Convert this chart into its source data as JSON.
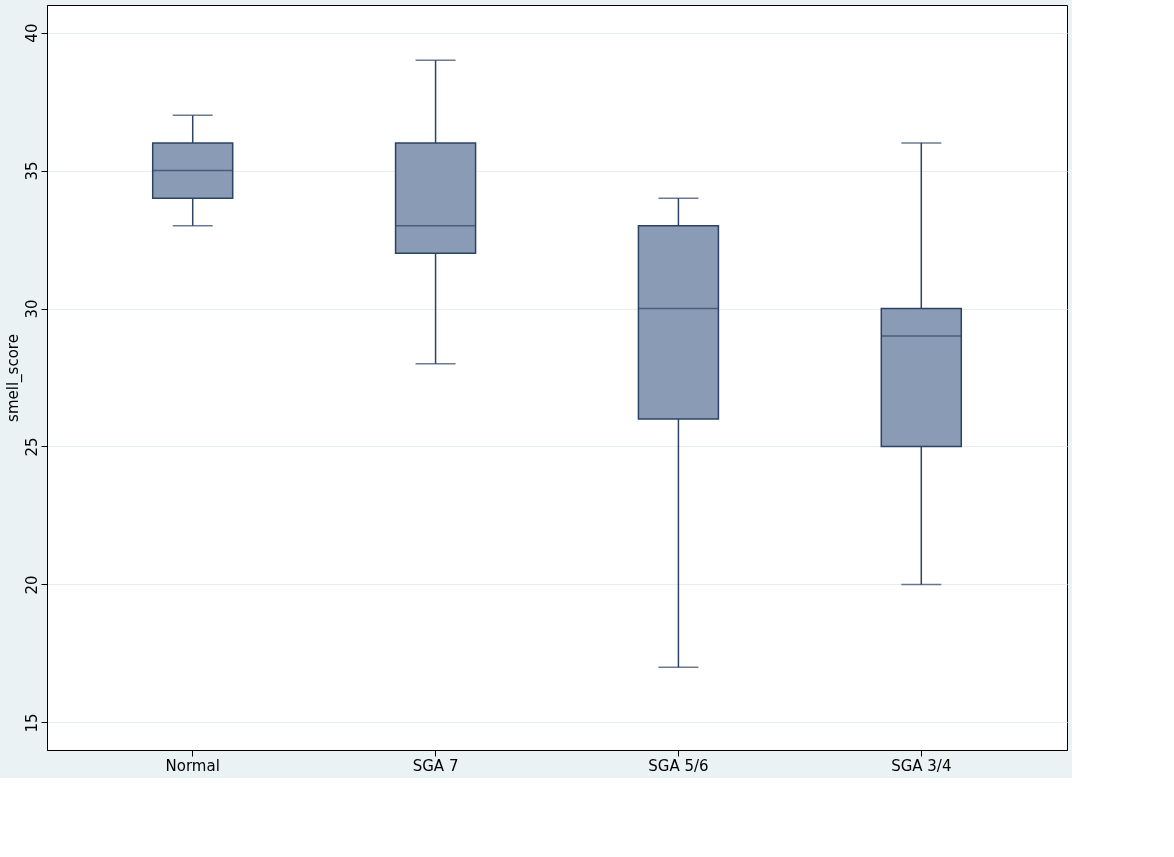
{
  "chart_data": {
    "type": "box",
    "ylabel": "smell_score",
    "categories": [
      "Normal",
      "SGA 7",
      "SGA 5/6",
      "SGA 3/4"
    ],
    "boxes": [
      {
        "low": 33,
        "q1": 34,
        "median": 35,
        "q3": 36,
        "high": 37
      },
      {
        "low": 28,
        "q1": 32,
        "median": 33,
        "q3": 36,
        "high": 39
      },
      {
        "low": 17,
        "q1": 26,
        "median": 30,
        "q3": 33,
        "high": 34
      },
      {
        "low": 20,
        "q1": 25,
        "median": 29,
        "q3": 30,
        "high": 36
      }
    ],
    "color": "#8a9bb5",
    "ylim": [
      14,
      41
    ],
    "yticks": [
      15,
      20,
      25,
      30,
      35,
      40
    ],
    "grid": "y"
  }
}
